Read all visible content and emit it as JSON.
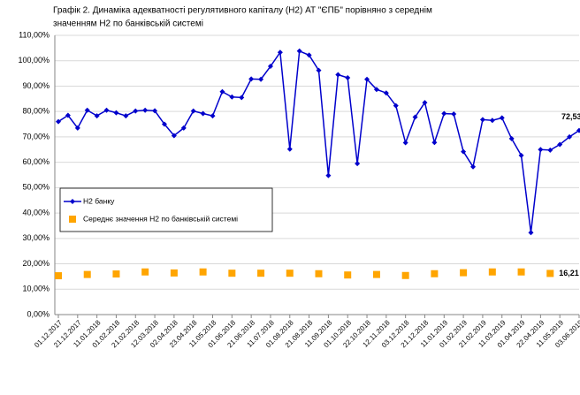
{
  "chart_data": {
    "type": "line",
    "title": "Графік 2. Динаміка адекватності регулятивного капіталу (Н2) АТ \"ЄПБ\" порівняно з середнім",
    "subtitle": "значенням Н2 по банківській системі",
    "categories": [
      "01.12.2017",
      null,
      "21.12.2017",
      null,
      "11.01.2018",
      null,
      "01.02.2018",
      null,
      "21.02.2018",
      null,
      "12.03.2018",
      null,
      "02.04.2018",
      null,
      "23.04.2018",
      null,
      "11.05.2018",
      null,
      "01.06.2018",
      null,
      "21.06.2018",
      null,
      "11.07.2018",
      null,
      "01.08.2018",
      null,
      "21.08.2018",
      null,
      "11.09.2018",
      null,
      "01.10.2018",
      null,
      "22.10.2018",
      null,
      "12.11.2018",
      null,
      "03.12.2018",
      null,
      "21.12.2018",
      null,
      "11.01.2019",
      null,
      "01.02.2019",
      null,
      "21.02.2019",
      null,
      "11.03.2019",
      null,
      "01.04.2019",
      null,
      "22.04.2019",
      null,
      "11.05.2019",
      null,
      "03.06.2019"
    ],
    "series": [
      {
        "name": "Н2 банку",
        "color": "#0000cc",
        "marker": "diamond",
        "line": true,
        "values": [
          76,
          78.5,
          73.5,
          80.5,
          78.3,
          80.5,
          79.5,
          78.3,
          80.2,
          80.5,
          80.3,
          75,
          70.5,
          73.5,
          80.2,
          79.2,
          78.3,
          87.8,
          85.7,
          85.5,
          92.8,
          92.7,
          97.8,
          103.3,
          65.2,
          103.8,
          102.2,
          96.2,
          54.8,
          94.5,
          93.3,
          59.5,
          92.7,
          88.7,
          87.3,
          82.3,
          67.7,
          77.8,
          83.5,
          67.8,
          79.2,
          79,
          64.2,
          58.2,
          76.8,
          76.5,
          77.5,
          69.3,
          62.7,
          32.3,
          65,
          64.8,
          67,
          70,
          72.53
        ],
        "value_labels": [
          null,
          null,
          null,
          null,
          null,
          null,
          null,
          null,
          null,
          null,
          null,
          null,
          null,
          null,
          null,
          null,
          null,
          null,
          null,
          null,
          null,
          null,
          null,
          null,
          null,
          null,
          null,
          null,
          null,
          null,
          null,
          null,
          null,
          null,
          null,
          null,
          null,
          null,
          null,
          null,
          null,
          null,
          null,
          null,
          null,
          null,
          null,
          null,
          null,
          null,
          null,
          null,
          null,
          null,
          "72,53"
        ]
      },
      {
        "name": "Середнє значення Н2 по банківській системі",
        "color": "#ffa500",
        "marker": "square",
        "line": false,
        "values": [
          15.3,
          null,
          null,
          15.8,
          null,
          null,
          16,
          null,
          null,
          16.8,
          null,
          null,
          16.4,
          null,
          null,
          16.8,
          null,
          null,
          16.3,
          null,
          null,
          16.3,
          null,
          null,
          16.3,
          null,
          null,
          16.1,
          null,
          null,
          15.6,
          null,
          null,
          15.8,
          null,
          null,
          15.4,
          null,
          null,
          16.1,
          null,
          null,
          16.5,
          null,
          null,
          16.8,
          null,
          null,
          16.8,
          null,
          null,
          16.21,
          null,
          null,
          null
        ],
        "value_labels": [
          null,
          null,
          null,
          null,
          null,
          null,
          null,
          null,
          null,
          null,
          null,
          null,
          null,
          null,
          null,
          null,
          null,
          null,
          null,
          null,
          null,
          null,
          null,
          null,
          null,
          null,
          null,
          null,
          null,
          null,
          null,
          null,
          null,
          null,
          null,
          null,
          null,
          null,
          null,
          null,
          null,
          null,
          null,
          null,
          null,
          null,
          null,
          null,
          null,
          null,
          null,
          "16,21",
          null,
          null,
          null
        ]
      }
    ],
    "ylim": [
      0,
      110
    ],
    "yticks": [
      {
        "value": 0,
        "label": "0,00%"
      },
      {
        "value": 10,
        "label": "10,00%"
      },
      {
        "value": 20,
        "label": "20,00%"
      },
      {
        "value": 30,
        "label": "30,00%"
      },
      {
        "value": 40,
        "label": "40,00%"
      },
      {
        "value": 50,
        "label": "50,00%"
      },
      {
        "value": 60,
        "label": "60,00%"
      },
      {
        "value": 70,
        "label": "70,00%"
      },
      {
        "value": 80,
        "label": "80,00%"
      },
      {
        "value": 90,
        "label": "90,00%"
      },
      {
        "value": 100,
        "label": "100,00%"
      },
      {
        "value": 110,
        "label": "110,00%"
      }
    ],
    "grid": true,
    "legend": "left"
  }
}
